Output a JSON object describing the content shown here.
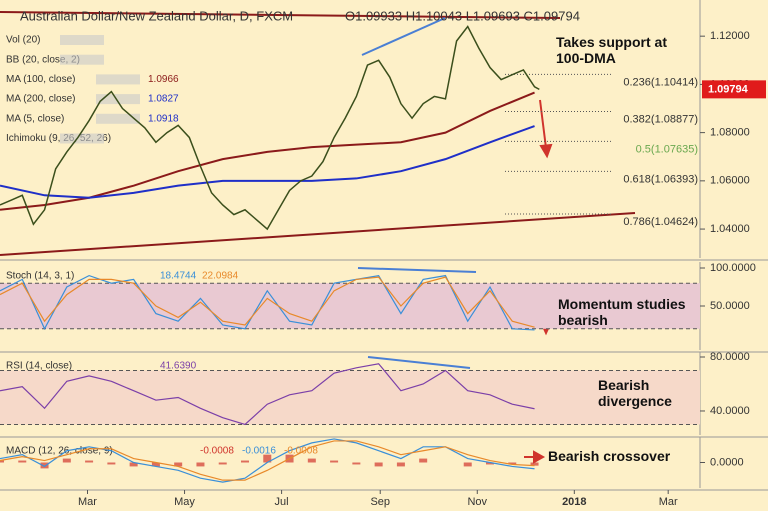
{
  "chart_data": [
    {
      "type": "line",
      "title": "Australian Dollar/New Zealand Dollar, D, FXCM",
      "subtitle": "O1.09933 H1.10043 L1.09693 C1.09794",
      "xlim": [
        4,
        444
      ],
      "ylim": [
        1.028,
        1.135
      ],
      "yticks": [
        {
          "value": 1.12,
          "label": "1.12000"
        },
        {
          "value": 1.1,
          "label": "1.10000"
        },
        {
          "value": 1.08,
          "label": "1.08000"
        },
        {
          "value": 1.06,
          "label": "1.06000"
        },
        {
          "value": 1.04,
          "label": "1.04000"
        }
      ],
      "last_price": {
        "value": 1.09794,
        "label": "1.09794"
      },
      "price": {
        "color": "#3b4f1c",
        "x": [
          4,
          11,
          18,
          25,
          32,
          39,
          46,
          53,
          60,
          67,
          74,
          81,
          88,
          95,
          102,
          109,
          116,
          123,
          130,
          137,
          144,
          151,
          158,
          165,
          172,
          179,
          186,
          193,
          200,
          207,
          214,
          221,
          228,
          235,
          242,
          249,
          256,
          263,
          270,
          277,
          284,
          291,
          298,
          305,
          312,
          319,
          326,
          333,
          340,
          343
        ],
        "values": [
          1.05,
          1.052,
          1.054,
          1.042,
          1.048,
          1.065,
          1.072,
          1.078,
          1.085,
          1.093,
          1.097,
          1.09,
          1.086,
          1.082,
          1.076,
          1.08,
          1.083,
          1.078,
          1.066,
          1.055,
          1.05,
          1.046,
          1.048,
          1.044,
          1.04,
          1.048,
          1.056,
          1.06,
          1.062,
          1.068,
          1.078,
          1.086,
          1.095,
          1.108,
          1.11,
          1.103,
          1.092,
          1.086,
          1.092,
          1.095,
          1.094,
          1.118,
          1.124,
          1.115,
          1.107,
          1.102,
          1.104,
          1.106,
          1.099,
          1.09794
        ]
      },
      "indicators": [
        {
          "name": "Vol (20)"
        },
        {
          "name": "BB (20, close, 2)"
        },
        {
          "name": "MA (100, close)",
          "last": 1.0966,
          "color": "#8b1a1a",
          "x": [
            4,
            32,
            60,
            88,
            116,
            144,
            172,
            200,
            228,
            256,
            284,
            312,
            340
          ],
          "values": [
            1.048,
            1.05,
            1.053,
            1.058,
            1.064,
            1.069,
            1.072,
            1.074,
            1.075,
            1.076,
            1.08,
            1.089,
            1.0966
          ]
        },
        {
          "name": "MA (200, close)",
          "last": 1.0827,
          "color": "#1f2fc8",
          "x": [
            4,
            32,
            60,
            88,
            116,
            144,
            172,
            200,
            228,
            256,
            284,
            312,
            340
          ],
          "values": [
            1.058,
            1.054,
            1.053,
            1.055,
            1.058,
            1.06,
            1.06,
            1.06,
            1.061,
            1.064,
            1.069,
            1.076,
            1.0827
          ]
        },
        {
          "name": "MA (5, close)",
          "last": 1.0918,
          "color": "#1f2fc8"
        },
        {
          "name": "Ichimoku (9, 26, 52, 26)"
        }
      ],
      "fibonacci": [
        {
          "value": 1.10414,
          "label": "0.236(1.10414)",
          "color": "#333333"
        },
        {
          "value": 1.08877,
          "label": "0.382(1.08877)",
          "color": "#333333"
        },
        {
          "value": 1.07635,
          "label": "0.5(1.07635)",
          "color": "#6aa84f"
        },
        {
          "value": 1.06393,
          "label": "0.618(1.06393)",
          "color": "#333333"
        },
        {
          "value": 1.04624,
          "label": "0.786(1.04624)",
          "color": "#333333"
        }
      ],
      "annotations": [
        "Takes support at 100-DMA"
      ]
    },
    {
      "type": "line",
      "xlim": [
        4,
        444
      ],
      "ylim": [
        -7.9,
        107.9
      ],
      "yticks": [
        {
          "value": 100,
          "label": "100.0000"
        },
        {
          "value": 50,
          "label": "50.0000"
        }
      ],
      "levels": [
        80,
        20
      ],
      "band_color": "#e9c9d2",
      "name": "Stoch (14, 3, 1)",
      "series": [
        {
          "color": "#3a8fd8",
          "last": 18.4744,
          "x": [
            4,
            18,
            32,
            46,
            60,
            74,
            88,
            102,
            116,
            130,
            144,
            158,
            172,
            186,
            200,
            214,
            228,
            242,
            256,
            270,
            284,
            298,
            312,
            326,
            340
          ],
          "values": [
            70,
            85,
            20,
            75,
            90,
            80,
            85,
            40,
            30,
            60,
            25,
            20,
            70,
            30,
            25,
            80,
            85,
            90,
            40,
            85,
            90,
            30,
            75,
            20,
            18.4744
          ]
        },
        {
          "color": "#e8892a",
          "last": 22.0984,
          "x": [
            4,
            18,
            32,
            46,
            60,
            74,
            88,
            102,
            116,
            130,
            144,
            158,
            172,
            186,
            200,
            214,
            228,
            242,
            256,
            270,
            284,
            298,
            312,
            326,
            340
          ],
          "values": [
            65,
            80,
            30,
            65,
            85,
            85,
            80,
            50,
            35,
            55,
            30,
            25,
            60,
            40,
            30,
            70,
            85,
            88,
            50,
            80,
            88,
            40,
            70,
            30,
            22.0984
          ]
        }
      ],
      "annotations": [
        "Momentum studies bearish"
      ]
    },
    {
      "type": "line",
      "xlim": [
        4,
        444
      ],
      "ylim": [
        22.2,
        83.7
      ],
      "yticks": [
        {
          "value": 80,
          "label": "80.0000"
        },
        {
          "value": 40,
          "label": "40.0000"
        }
      ],
      "levels": [
        70,
        30
      ],
      "band_color": "#f6d9c9",
      "name": "RSI (14, close)",
      "series": [
        {
          "color": "#7b3fa8",
          "last": {
            "value": 41.639,
            "label": "41.6390"
          },
          "x": [
            4,
            18,
            32,
            46,
            60,
            74,
            88,
            102,
            116,
            130,
            144,
            158,
            172,
            186,
            200,
            214,
            228,
            242,
            256,
            270,
            284,
            298,
            312,
            326,
            340
          ],
          "values": [
            55,
            58,
            42,
            62,
            66,
            62,
            55,
            48,
            50,
            42,
            35,
            30,
            45,
            52,
            55,
            68,
            72,
            75,
            55,
            60,
            70,
            55,
            52,
            45,
            41.639
          ]
        }
      ],
      "annotations": [
        "Bearish divergence"
      ]
    },
    {
      "type": "line",
      "xlim": [
        4,
        444
      ],
      "ylim": [
        -0.0065,
        0.0065
      ],
      "yticks": [
        {
          "value": 0,
          "label": "0.0000"
        }
      ],
      "name": "MACD (12, 26, close, 9)",
      "xticks": [
        {
          "value": 59,
          "label": "Mar"
        },
        {
          "value": 120,
          "label": "May"
        },
        {
          "value": 181,
          "label": "Jul"
        },
        {
          "value": 243,
          "label": "Sep"
        },
        {
          "value": 304,
          "label": "Nov"
        },
        {
          "value": 365,
          "label": "2018"
        },
        {
          "value": 424,
          "label": "Mar"
        }
      ],
      "series": [
        {
          "color": "#d0342c",
          "bars": true,
          "last": -0.0008,
          "x": [
            4,
            18,
            32,
            46,
            60,
            74,
            88,
            102,
            116,
            130,
            144,
            158,
            172,
            186,
            200,
            214,
            228,
            242,
            256,
            270,
            284,
            298,
            312,
            326,
            340
          ],
          "values": [
            0.0005,
            0.0005,
            -0.0015,
            0.001,
            0.0005,
            -0.0005,
            -0.001,
            -0.001,
            -0.001,
            -0.001,
            -0.0005,
            0.0005,
            0.002,
            0.002,
            0.001,
            0.0005,
            -0.0005,
            -0.001,
            -0.001,
            0.001,
            0,
            -0.001,
            -0.0005,
            -0.0005,
            -0.0008
          ]
        },
        {
          "color": "#3a8fd8",
          "last": -0.0016,
          "x": [
            4,
            18,
            32,
            46,
            60,
            74,
            88,
            102,
            116,
            130,
            144,
            158,
            172,
            186,
            200,
            214,
            228,
            242,
            256,
            270,
            284,
            298,
            312,
            326,
            340
          ],
          "values": [
            0.001,
            0.002,
            -0.001,
            0.003,
            0.004,
            0.003,
            0.0,
            -0.001,
            -0.002,
            -0.004,
            -0.005,
            -0.004,
            0.0,
            0.003,
            0.005,
            0.006,
            0.005,
            0.003,
            0.001,
            0.004,
            0.004,
            0.001,
            0.0,
            -0.001,
            -0.0016
          ]
        },
        {
          "color": "#e8892a",
          "last": -0.0008,
          "x": [
            4,
            18,
            32,
            46,
            60,
            74,
            88,
            102,
            116,
            130,
            144,
            158,
            172,
            186,
            200,
            214,
            228,
            242,
            256,
            270,
            284,
            298,
            312,
            326,
            340
          ],
          "values": [
            0.0005,
            0.0015,
            0.0005,
            0.002,
            0.0035,
            0.0035,
            0.001,
            0.0,
            -0.001,
            -0.003,
            -0.0045,
            -0.0045,
            -0.002,
            0.001,
            0.004,
            0.0055,
            0.0055,
            0.004,
            0.002,
            0.003,
            0.004,
            0.002,
            0.0005,
            -0.0005,
            -0.0008
          ]
        }
      ],
      "annotations": [
        "Bearish crossover"
      ]
    }
  ]
}
